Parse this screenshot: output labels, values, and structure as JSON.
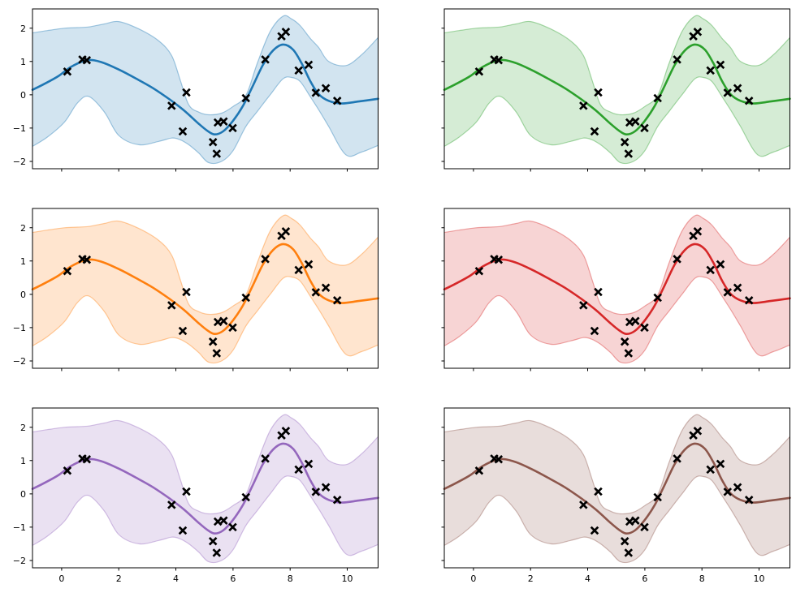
{
  "figure": {
    "background": "#ffffff",
    "grid_rows": 3,
    "grid_cols": 2,
    "title": "",
    "marker_color": "#000000",
    "spine_color": "#000000",
    "band_fill_opacity": 0.2,
    "band_edge_opacity": 0.4
  },
  "chart_data": {
    "type": "line",
    "description": "3x2 grid of identical Gaussian-process style fits (mean curve, 95% confidence band, scatter of observations), each panel in a different color",
    "grid": false,
    "legend": false,
    "xlabel": "",
    "ylabel": "",
    "xlim": [
      -1.02,
      11.08
    ],
    "ylim": [
      -2.22,
      2.58
    ],
    "x_ticks": [
      0,
      2,
      4,
      6,
      8,
      10
    ],
    "y_ticks": [
      -2,
      -1,
      0,
      1,
      2
    ],
    "panels": [
      {
        "id": "top-left",
        "row": 0,
        "col": 0,
        "color_name": "blue",
        "color": "#1f77b4",
        "show_x_labels": false,
        "show_y_labels": true
      },
      {
        "id": "top-right",
        "row": 0,
        "col": 1,
        "color_name": "green",
        "color": "#2ca02c",
        "show_x_labels": false,
        "show_y_labels": false
      },
      {
        "id": "middle-left",
        "row": 1,
        "col": 0,
        "color_name": "orange",
        "color": "#ff7f0e",
        "show_x_labels": false,
        "show_y_labels": true
      },
      {
        "id": "middle-right",
        "row": 1,
        "col": 1,
        "color_name": "red",
        "color": "#d62728",
        "show_x_labels": false,
        "show_y_labels": false
      },
      {
        "id": "bottom-left",
        "row": 2,
        "col": 0,
        "color_name": "purple",
        "color": "#9467bd",
        "show_x_labels": true,
        "show_y_labels": true
      },
      {
        "id": "bottom-right",
        "row": 2,
        "col": 1,
        "color_name": "brown",
        "color": "#8c564b",
        "show_x_labels": true,
        "show_y_labels": false
      }
    ],
    "scatter_points": {
      "marker": "x",
      "color": "#000000",
      "x": [
        0.2,
        0.73,
        0.88,
        3.85,
        4.37,
        4.24,
        5.3,
        5.43,
        5.47,
        5.67,
        5.99,
        6.45,
        7.13,
        7.7,
        7.85,
        8.3,
        8.65,
        8.9,
        9.25,
        9.65
      ],
      "y": [
        0.7,
        1.06,
        1.04,
        -0.33,
        0.07,
        -1.1,
        -1.42,
        -1.77,
        -0.83,
        -0.8,
        -1.0,
        -0.1,
        1.06,
        1.76,
        1.89,
        0.73,
        0.9,
        0.06,
        0.2,
        -0.18
      ]
    },
    "mean_curve": {
      "x": [
        -1.02,
        -0.6,
        -0.1,
        0.35,
        0.9,
        1.4,
        2.0,
        2.6,
        3.2,
        3.8,
        4.3,
        4.8,
        5.1,
        5.35,
        5.65,
        6.0,
        6.35,
        6.7,
        7.05,
        7.4,
        7.75,
        8.1,
        8.4,
        8.7,
        9.0,
        9.35,
        9.8,
        10.4,
        11.08
      ],
      "y": [
        0.15,
        0.33,
        0.57,
        0.85,
        1.04,
        0.98,
        0.76,
        0.49,
        0.2,
        -0.15,
        -0.48,
        -0.87,
        -1.08,
        -1.19,
        -1.1,
        -0.78,
        -0.33,
        0.28,
        0.9,
        1.33,
        1.51,
        1.36,
        0.95,
        0.42,
        0.02,
        -0.18,
        -0.26,
        -0.2,
        -0.12
      ]
    },
    "confidence_band": {
      "x": [
        -1.02,
        -0.5,
        0.1,
        0.55,
        0.95,
        1.5,
        2.0,
        2.7,
        3.4,
        3.85,
        4.15,
        4.45,
        4.8,
        5.15,
        5.6,
        6.0,
        6.45,
        6.85,
        7.3,
        7.75,
        8.05,
        8.35,
        8.7,
        9.0,
        9.35,
        9.95,
        10.5,
        11.08
      ],
      "upper": [
        1.86,
        1.93,
        2.0,
        2.02,
        2.04,
        2.13,
        2.2,
        1.98,
        1.62,
        1.18,
        0.45,
        -0.3,
        -0.52,
        -0.6,
        -0.55,
        -0.35,
        -0.02,
        0.95,
        1.9,
        2.36,
        2.28,
        2.08,
        1.7,
        1.42,
        1.0,
        0.88,
        1.2,
        1.72
      ],
      "lower": [
        -1.55,
        -1.27,
        -0.82,
        -0.25,
        -0.05,
        -0.52,
        -1.22,
        -1.5,
        -1.4,
        -1.3,
        -1.35,
        -1.5,
        -1.75,
        -2.04,
        -2.0,
        -1.68,
        -0.95,
        -0.5,
        0.0,
        0.48,
        0.52,
        0.4,
        -0.05,
        -0.45,
        -0.95,
        -1.8,
        -1.72,
        -1.52
      ]
    }
  }
}
